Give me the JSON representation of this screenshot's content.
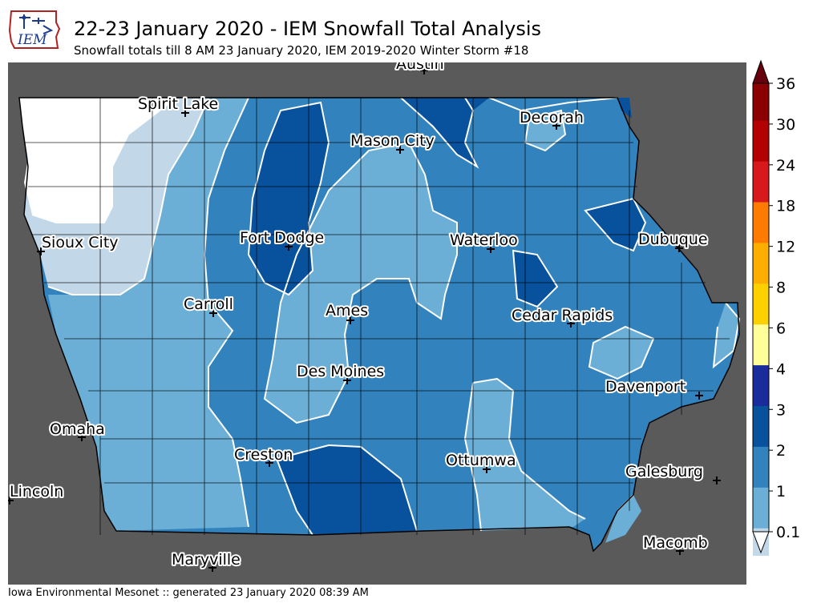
{
  "header": {
    "logo_text": "IEM",
    "title": "22-23 January 2020 - IEM Snowfall Total Analysis",
    "subtitle": "Snowfall totals till 8 AM 23 January 2020, IEM 2019-2020 Winter Storm #18"
  },
  "footer": {
    "text": "Iowa Environmental Mesonet :: generated 23 January 2020 08:39 AM"
  },
  "colors": {
    "background": "#5a5a5a",
    "no_snow": "#ffffff",
    "c_0_1": "#c2d8e8",
    "c_1_2": "#6baed6",
    "c_2_3": "#3182bd",
    "c_3_4": "#08519c",
    "contour": "#ffffff",
    "county_line": "#000000"
  },
  "legend": {
    "ticks": [
      "36",
      "30",
      "24",
      "18",
      "12",
      "8",
      "6",
      "4",
      "3",
      "2",
      "1",
      "0.1"
    ],
    "colors": [
      "#67000d",
      "#8b0000",
      "#b30000",
      "#d7191c",
      "#fd7b00",
      "#fdae00",
      "#fdd000",
      "#ffff99",
      "#1a2b9b",
      "#08519c",
      "#3182bd",
      "#6baed6",
      "#c2d8e8"
    ]
  },
  "cities": [
    {
      "id": "austin",
      "name": "Austin"
    },
    {
      "id": "spirit-lake",
      "name": "Spirit Lake"
    },
    {
      "id": "decorah",
      "name": "Decorah"
    },
    {
      "id": "mason-city",
      "name": "Mason City"
    },
    {
      "id": "sioux-city",
      "name": "Sioux City"
    },
    {
      "id": "fort-dodge",
      "name": "Fort Dodge"
    },
    {
      "id": "waterloo",
      "name": "Waterloo"
    },
    {
      "id": "dubuque",
      "name": "Dubuque"
    },
    {
      "id": "carroll",
      "name": "Carroll"
    },
    {
      "id": "ames",
      "name": "Ames"
    },
    {
      "id": "cedar-rapids",
      "name": "Cedar Rapids"
    },
    {
      "id": "des-moines",
      "name": "Des Moines"
    },
    {
      "id": "davenport",
      "name": "Davenport"
    },
    {
      "id": "omaha",
      "name": "Omaha"
    },
    {
      "id": "creston",
      "name": "Creston"
    },
    {
      "id": "ottumwa",
      "name": "Ottumwa"
    },
    {
      "id": "galesburg",
      "name": "Galesburg"
    },
    {
      "id": "lincoln",
      "name": "Lincoln"
    },
    {
      "id": "macomb",
      "name": "Macomb"
    },
    {
      "id": "maryville",
      "name": "Maryville"
    }
  ]
}
